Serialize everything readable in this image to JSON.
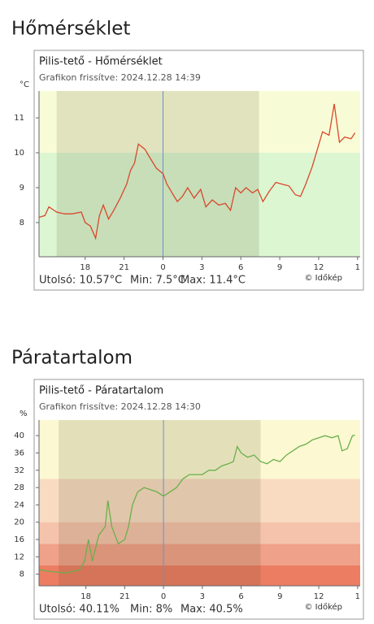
{
  "chart_data": [
    {
      "type": "line",
      "heading": "Hőmérséklet",
      "title": "Pilis-tető - Hőmérséklet",
      "subtitle": "Grafikon frissítve: 2024.12.28 14:39",
      "ylabel": "°C",
      "credit": "© Időkép",
      "stats": [
        "Utolsó: 10.57°C",
        "Min: 7.5°C",
        "Max: 11.4°C"
      ],
      "xlim": [
        14.44,
        39.2
      ],
      "ylim": [
        7.02,
        11.77
      ],
      "xticks": [
        18,
        21,
        {
          "value": 24,
          "label": "0"
        },
        {
          "value": 27,
          "label": "3"
        },
        {
          "value": 30,
          "label": "6"
        },
        {
          "value": 33,
          "label": "9"
        },
        {
          "value": 36,
          "label": "12"
        },
        {
          "value": 39,
          "label": "1"
        }
      ],
      "yticks": [
        8,
        9,
        10,
        11
      ],
      "bands": [
        {
          "from": 10,
          "to": 11.77,
          "color": "#f8fcd6"
        },
        {
          "from": 7.02,
          "to": 10,
          "color": "#dcf6d2"
        }
      ],
      "shade": [
        15.8,
        31.4
      ],
      "now": 24,
      "series": [
        {
          "name": "Pilis-tető",
          "color": "#d9482a",
          "x": [
            14.44,
            14.9,
            15.2,
            15.8,
            16.4,
            17.0,
            17.7,
            18.0,
            18.4,
            18.8,
            19.1,
            19.4,
            19.8,
            20.2,
            20.7,
            21.2,
            21.5,
            21.8,
            22.1,
            22.6,
            23.0,
            23.5,
            24.0,
            24.3,
            24.7,
            25.1,
            25.5,
            25.9,
            26.4,
            26.9,
            27.3,
            27.8,
            28.3,
            28.8,
            29.2,
            29.6,
            30.0,
            30.4,
            30.9,
            31.3,
            31.7,
            32.2,
            32.7,
            33.2,
            33.7,
            34.2,
            34.6,
            35.0,
            35.5,
            35.9,
            36.3,
            36.8,
            37.2,
            37.6,
            38.0,
            38.5,
            38.8
          ],
          "values": [
            8.15,
            8.2,
            8.45,
            8.3,
            8.25,
            8.25,
            8.3,
            8.0,
            7.9,
            7.55,
            8.2,
            8.5,
            8.1,
            8.35,
            8.7,
            9.1,
            9.5,
            9.7,
            10.25,
            10.1,
            9.85,
            9.55,
            9.4,
            9.1,
            8.85,
            8.6,
            8.75,
            9.0,
            8.7,
            8.95,
            8.45,
            8.65,
            8.5,
            8.55,
            8.35,
            9.0,
            8.85,
            9.0,
            8.85,
            8.95,
            8.6,
            8.9,
            9.15,
            9.1,
            9.05,
            8.8,
            8.75,
            9.1,
            9.6,
            10.1,
            10.6,
            10.5,
            11.4,
            10.3,
            10.45,
            10.4,
            10.57
          ]
        }
      ]
    },
    {
      "type": "line",
      "heading": "Páratartalom",
      "title": "Pilis-tető - Páratartalom",
      "subtitle": "Grafikon frissítve: 2024.12.28 14:30",
      "ylabel": "%",
      "credit": "© Időkép",
      "stats": [
        "Utolsó: 40.11%",
        "Min: 8%",
        "Max: 40.5%"
      ],
      "xlim": [
        14.38,
        39.2
      ],
      "ylim": [
        5.3,
        43.6
      ],
      "xticks": [
        18,
        21,
        {
          "value": 24,
          "label": "0"
        },
        {
          "value": 27,
          "label": "3"
        },
        {
          "value": 30,
          "label": "6"
        },
        {
          "value": 33,
          "label": "9"
        },
        {
          "value": 36,
          "label": "12"
        },
        {
          "value": 39,
          "label": "1"
        }
      ],
      "yticks": [
        8,
        12,
        16,
        20,
        24,
        28,
        32,
        36,
        40
      ],
      "bands": [
        {
          "from": 30,
          "to": 43.6,
          "color": "#fcf8d2"
        },
        {
          "from": 20,
          "to": 30,
          "color": "#f8dbc0"
        },
        {
          "from": 15,
          "to": 20,
          "color": "#f5c3ab"
        },
        {
          "from": 10,
          "to": 15,
          "color": "#f0a189"
        },
        {
          "from": 5.3,
          "to": 10,
          "color": "#ec7d62"
        }
      ],
      "shade": [
        15.9,
        31.5
      ],
      "now": 24,
      "series": [
        {
          "name": "Pilis-tető",
          "color": "#6ab04c",
          "x": [
            14.44,
            15.5,
            16.5,
            17.5,
            17.9,
            18.2,
            18.5,
            19.0,
            19.5,
            19.7,
            20.0,
            20.5,
            21.0,
            21.3,
            21.6,
            22.0,
            22.5,
            23.0,
            23.5,
            24.0,
            24.5,
            25.0,
            25.5,
            26.0,
            27.0,
            27.5,
            28.0,
            28.5,
            29.0,
            29.4,
            29.7,
            30.0,
            30.5,
            31.0,
            31.5,
            32.0,
            32.5,
            33.0,
            33.5,
            34.0,
            34.5,
            35.0,
            35.5,
            36.0,
            36.5,
            37.0,
            37.5,
            37.8,
            38.2,
            38.6,
            38.8
          ],
          "values": [
            9,
            8.5,
            8.3,
            9,
            11,
            16,
            11,
            17,
            19,
            25,
            19,
            15,
            16,
            19,
            24,
            27,
            28,
            27.5,
            27,
            26,
            27,
            28,
            30,
            31,
            31,
            32,
            32,
            33,
            33.5,
            34,
            37.5,
            36,
            35,
            35.5,
            34,
            33.5,
            34.5,
            34,
            35.5,
            36.5,
            37.5,
            38,
            39,
            39.5,
            40,
            39.5,
            40,
            36.5,
            37,
            40,
            40.11
          ]
        }
      ]
    }
  ]
}
